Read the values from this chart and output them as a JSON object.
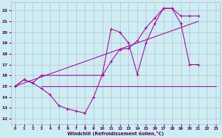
{
  "xlabel": "Windchill (Refroidissement éolien,°C)",
  "xlim": [
    -0.5,
    23.5
  ],
  "ylim": [
    11.5,
    22.8
  ],
  "yticks": [
    12,
    13,
    14,
    15,
    16,
    17,
    18,
    19,
    20,
    21,
    22
  ],
  "xticks": [
    0,
    1,
    2,
    3,
    4,
    5,
    6,
    7,
    8,
    9,
    10,
    11,
    12,
    13,
    14,
    15,
    16,
    17,
    18,
    19,
    20,
    21,
    22,
    23
  ],
  "bg_color": "#cceef2",
  "grid_color": "#bbaacc",
  "line_color": "#aa00aa",
  "lines": [
    {
      "x": [
        0,
        1,
        2,
        3,
        4,
        5,
        6,
        7,
        8,
        9,
        10,
        11,
        12,
        13,
        14,
        15,
        16,
        17,
        18,
        19,
        20,
        21
      ],
      "y": [
        15.0,
        15.6,
        15.3,
        14.8,
        14.2,
        13.2,
        12.9,
        12.7,
        12.5,
        14.0,
        16.1,
        20.3,
        20.0,
        19.0,
        16.1,
        19.0,
        20.8,
        22.2,
        22.2,
        20.8,
        17.0,
        17.0
      ],
      "marker": true
    },
    {
      "x": [
        0,
        1,
        2,
        3,
        10,
        11,
        12,
        13,
        14,
        15,
        16,
        17,
        18,
        19,
        20,
        21
      ],
      "y": [
        15.0,
        15.6,
        15.3,
        16.0,
        16.0,
        17.3,
        18.4,
        18.5,
        19.2,
        20.4,
        21.3,
        22.2,
        22.2,
        21.5,
        21.5,
        21.5
      ],
      "marker": true
    },
    {
      "x": [
        3,
        23
      ],
      "y": [
        15.0,
        15.0
      ],
      "marker": false
    },
    {
      "x": [
        0,
        21
      ],
      "y": [
        15.0,
        21.0
      ],
      "marker": false
    }
  ]
}
